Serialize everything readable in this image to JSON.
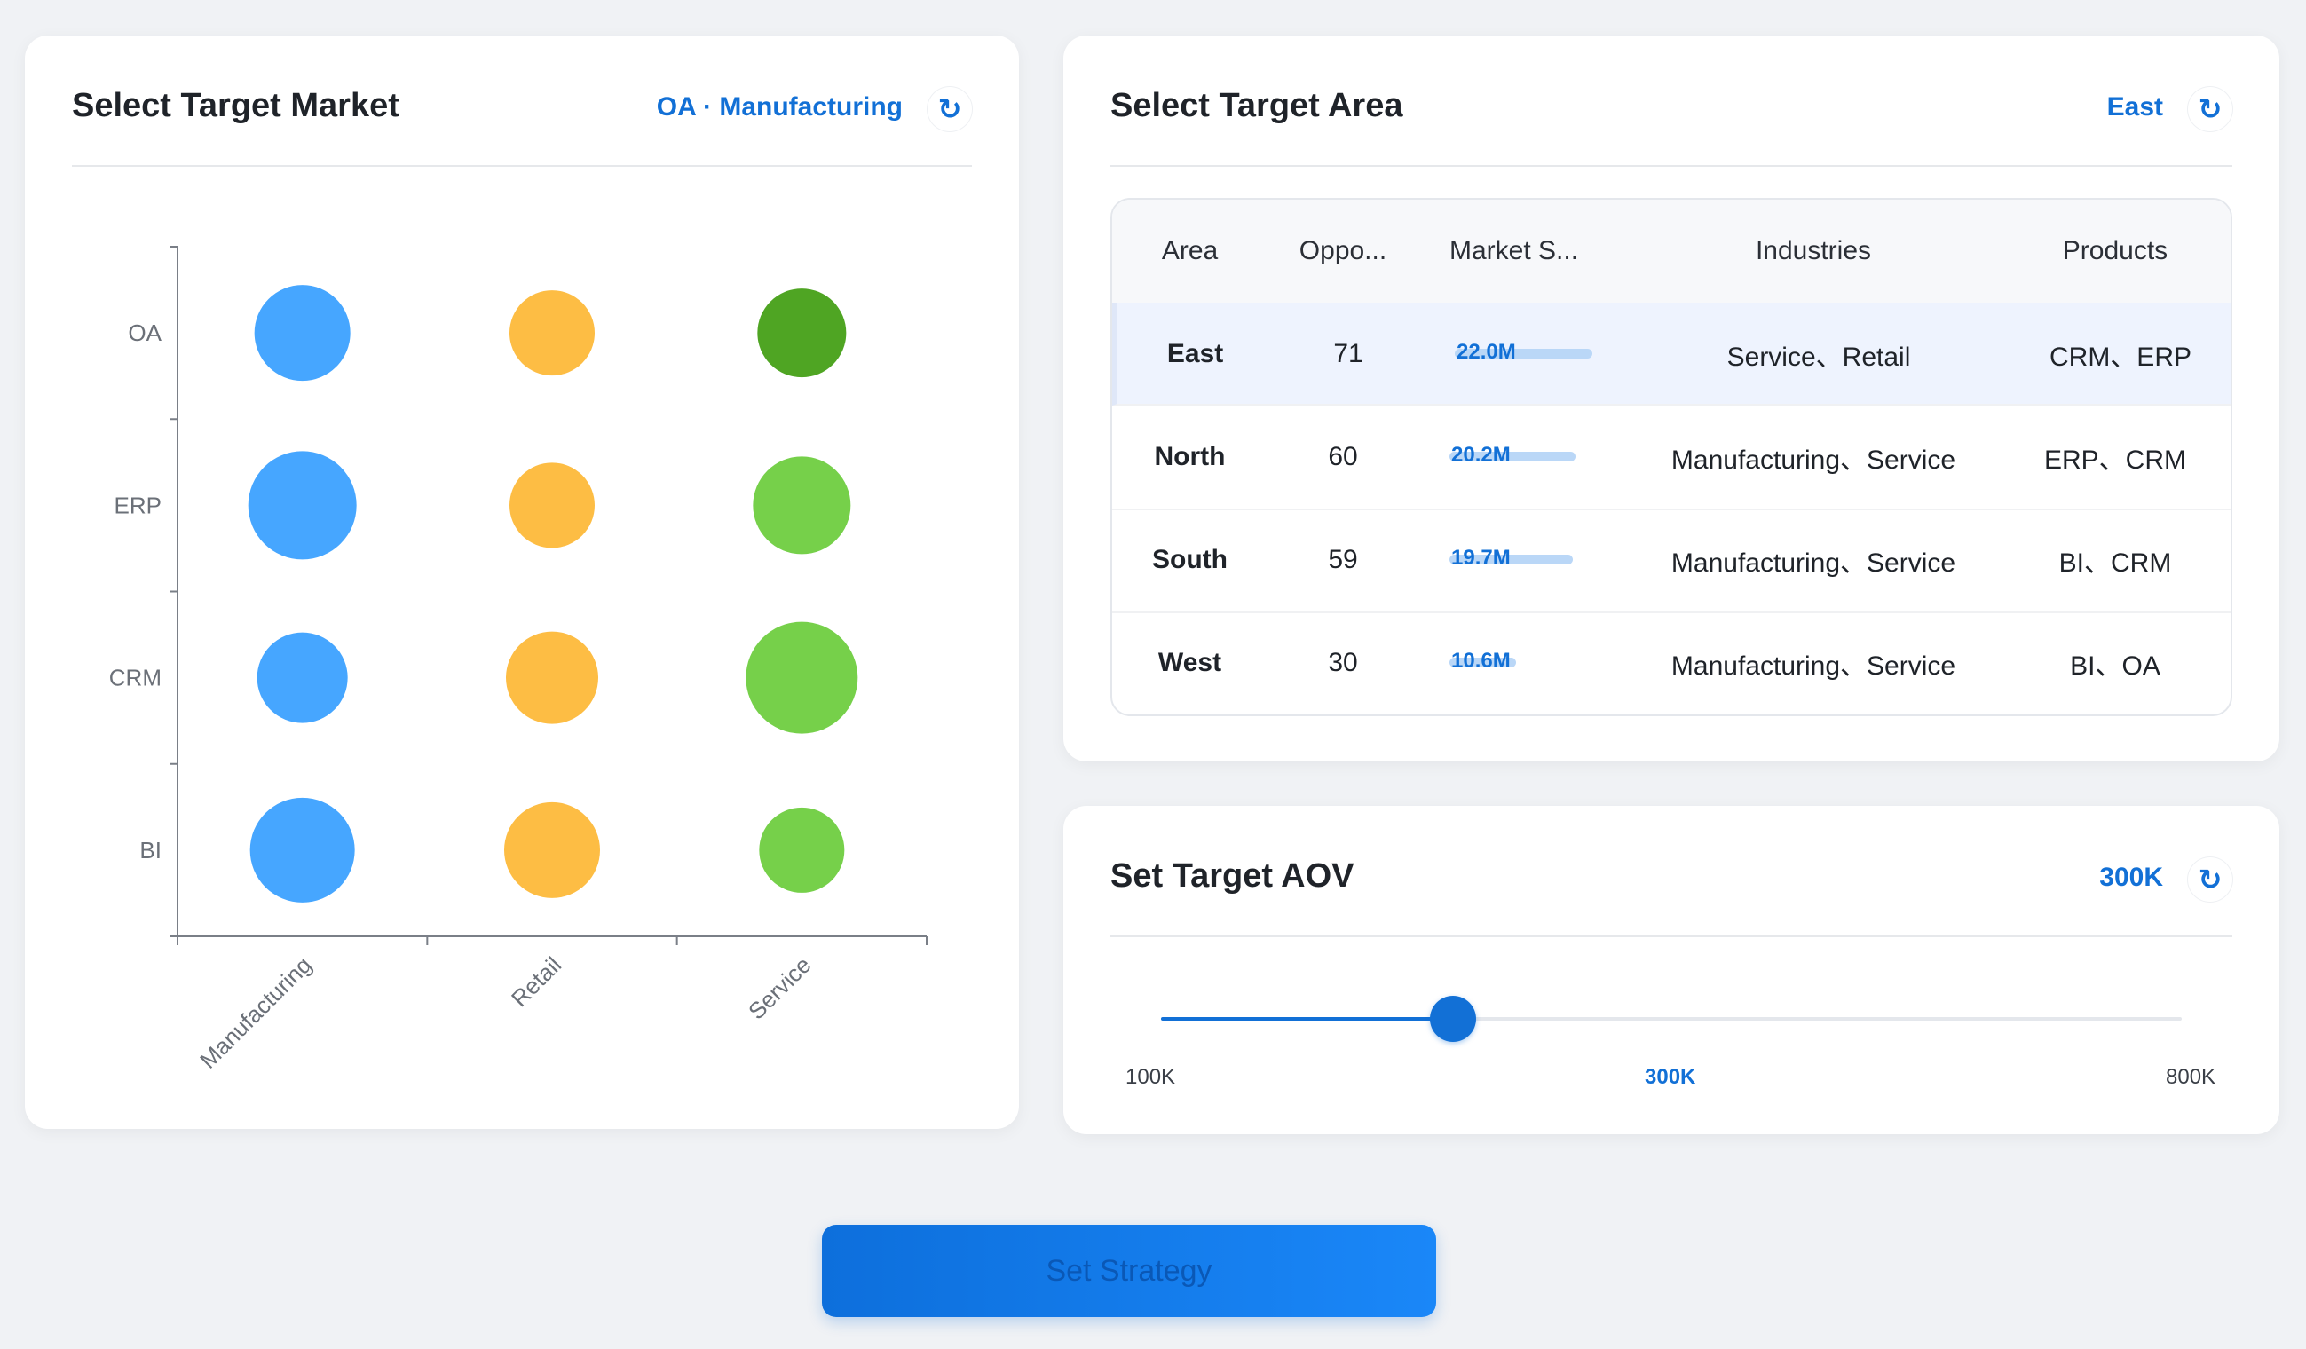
{
  "market_card": {
    "title": "Select Target Market",
    "selected_value": "OA · Manufacturing",
    "refresh_icon": "refresh-icon",
    "chart_data": {
      "type": "scatter",
      "x_categories": [
        "Manufacturing",
        "Retail",
        "Service"
      ],
      "y_categories": [
        "OA",
        "ERP",
        "CRM",
        "BI"
      ],
      "series": [
        {
          "category": "Manufacturing",
          "color": "#46a6ff",
          "points": [
            {
              "y": "OA",
              "size": 54
            },
            {
              "y": "ERP",
              "size": 61
            },
            {
              "y": "CRM",
              "size": 51
            },
            {
              "y": "BI",
              "size": 59
            }
          ]
        },
        {
          "category": "Retail",
          "color": "#fdbd44",
          "points": [
            {
              "y": "OA",
              "size": 48
            },
            {
              "y": "ERP",
              "size": 48
            },
            {
              "y": "CRM",
              "size": 52
            },
            {
              "y": "BI",
              "size": 54
            }
          ]
        },
        {
          "category": "Service",
          "color": "#76d04a",
          "points": [
            {
              "y": "OA",
              "size": 50,
              "color": "#4fa523"
            },
            {
              "y": "ERP",
              "size": 55
            },
            {
              "y": "CRM",
              "size": 63
            },
            {
              "y": "BI",
              "size": 48
            }
          ]
        }
      ],
      "selected": {
        "x": "Manufacturing",
        "y": "OA"
      }
    }
  },
  "area_card": {
    "title": "Select Target Area",
    "selected_value": "East",
    "refresh_icon": "refresh-icon",
    "columns": [
      "Area",
      "Oppo...",
      "Market S...",
      "Industries",
      "Products"
    ],
    "rows": [
      {
        "area": "East",
        "opportunities": "71",
        "market_share": "22.0M",
        "share_fraction": 1.0,
        "industries": "Service、Retail",
        "products": "CRM、ERP",
        "selected": true
      },
      {
        "area": "North",
        "opportunities": "60",
        "market_share": "20.2M",
        "share_fraction": 0.918,
        "industries": "Manufacturing、Service",
        "products": "ERP、CRM",
        "selected": false
      },
      {
        "area": "South",
        "opportunities": "59",
        "market_share": "19.7M",
        "share_fraction": 0.895,
        "industries": "Manufacturing、Service",
        "products": "BI、CRM",
        "selected": false
      },
      {
        "area": "West",
        "opportunities": "30",
        "market_share": "10.6M",
        "share_fraction": 0.482,
        "industries": "Manufacturing、Service",
        "products": "BI、OA",
        "selected": false
      }
    ]
  },
  "aov_card": {
    "title": "Set Target AOV",
    "selected_value": "300K",
    "refresh_icon": "refresh-icon",
    "slider": {
      "min_label": "100K",
      "current_label": "300K",
      "max_label": "800K",
      "min": 100,
      "max": 800,
      "value": 300,
      "position_fraction": 0.286
    }
  },
  "action": {
    "label": "Set Strategy"
  }
}
